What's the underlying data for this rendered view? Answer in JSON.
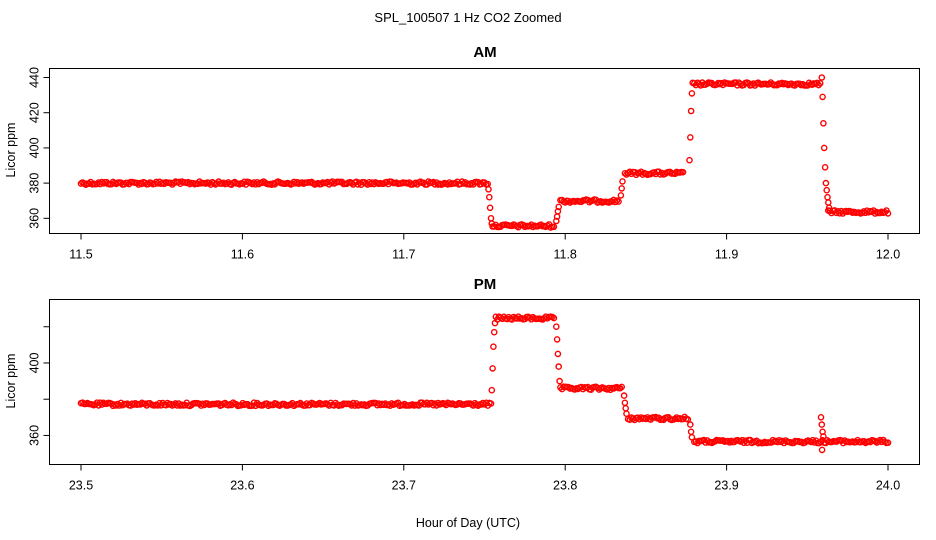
{
  "figure": {
    "title": "SPL_100507  1 Hz CO2 Zoomed",
    "xlabel": "Hour of Day (UTC)"
  },
  "chart_data": [
    {
      "type": "scatter",
      "title": "AM",
      "xlabel": "",
      "ylabel": "Licor ppm",
      "xlim": [
        11.5,
        12.0
      ],
      "ylim": [
        354.5,
        442
      ],
      "x_ticks": [
        11.5,
        11.6,
        11.7,
        11.8,
        11.9,
        12.0
      ],
      "x_tick_labels": [
        "11.5",
        "11.6",
        "11.7",
        "11.8",
        "11.9",
        "12.0"
      ],
      "y_ticks": [
        360,
        380,
        400,
        420,
        440
      ],
      "y_tick_labels": [
        "360",
        "380",
        "400",
        "420",
        "440"
      ],
      "grid": false,
      "marker": "open-circle",
      "color": "#ff0000",
      "segments": [
        {
          "x_start": 11.5,
          "x_end": 11.752,
          "y": 380.0
        },
        {
          "x_start": 11.755,
          "x_end": 11.793,
          "y": 355.7
        },
        {
          "x_start": 11.797,
          "x_end": 11.833,
          "y": 369.8
        },
        {
          "x_start": 11.837,
          "x_end": 11.873,
          "y": 385.6
        },
        {
          "x_start": 11.879,
          "x_end": 11.958,
          "y": 436.3
        },
        {
          "x_start": 11.963,
          "x_end": 12.0,
          "y": 363.6
        }
      ],
      "transitions": [
        {
          "x": 11.7525,
          "y": 376.5
        },
        {
          "x": 11.753,
          "y": 372.0
        },
        {
          "x": 11.7535,
          "y": 366.0
        },
        {
          "x": 11.754,
          "y": 360.0
        },
        {
          "x": 11.7545,
          "y": 357.0
        },
        {
          "x": 11.7945,
          "y": 358.5
        },
        {
          "x": 11.795,
          "y": 361.0
        },
        {
          "x": 11.7955,
          "y": 364.0
        },
        {
          "x": 11.796,
          "y": 366.5
        },
        {
          "x": 11.8345,
          "y": 373.0
        },
        {
          "x": 11.835,
          "y": 377.0
        },
        {
          "x": 11.8355,
          "y": 381.0
        },
        {
          "x": 11.877,
          "y": 393.0
        },
        {
          "x": 11.8775,
          "y": 406.0
        },
        {
          "x": 11.878,
          "y": 421.0
        },
        {
          "x": 11.8785,
          "y": 431.0
        },
        {
          "x": 11.959,
          "y": 440.0
        },
        {
          "x": 11.9595,
          "y": 429.0
        },
        {
          "x": 11.96,
          "y": 414.0
        },
        {
          "x": 11.9605,
          "y": 400.0
        },
        {
          "x": 11.961,
          "y": 389.0
        },
        {
          "x": 11.9615,
          "y": 380.0
        },
        {
          "x": 11.962,
          "y": 376.0
        },
        {
          "x": 11.9625,
          "y": 372.0
        },
        {
          "x": 11.963,
          "y": 369.0
        },
        {
          "x": 11.9635,
          "y": 366.0
        }
      ]
    },
    {
      "type": "scatter",
      "title": "PM",
      "xlabel": "",
      "ylabel": "Licor ppm",
      "xlim": [
        23.5,
        24.0
      ],
      "ylim": [
        347,
        432
      ],
      "x_ticks": [
        23.5,
        23.6,
        23.7,
        23.8,
        23.9,
        24.0
      ],
      "x_tick_labels": [
        "23.5",
        "23.6",
        "23.7",
        "23.8",
        "23.9",
        "24.0"
      ],
      "y_ticks": [
        360,
        380,
        400,
        420
      ],
      "y_tick_labels": [
        "360",
        "",
        "400",
        ""
      ],
      "grid": false,
      "marker": "open-circle",
      "color": "#ff0000",
      "segments": [
        {
          "x_start": 23.5,
          "x_end": 23.754,
          "y": 377.2
        },
        {
          "x_start": 23.757,
          "x_end": 23.793,
          "y": 424.7
        },
        {
          "x_start": 23.797,
          "x_end": 23.835,
          "y": 386.0
        },
        {
          "x_start": 23.839,
          "x_end": 23.876,
          "y": 369.4
        },
        {
          "x_start": 23.88,
          "x_end": 24.0,
          "y": 356.6
        }
      ],
      "transitions": [
        {
          "x": 23.7545,
          "y": 385.0
        },
        {
          "x": 23.755,
          "y": 397.0
        },
        {
          "x": 23.7555,
          "y": 409.0
        },
        {
          "x": 23.756,
          "y": 417.0
        },
        {
          "x": 23.7565,
          "y": 422.0
        },
        {
          "x": 23.7945,
          "y": 420.0
        },
        {
          "x": 23.795,
          "y": 413.0
        },
        {
          "x": 23.7955,
          "y": 405.0
        },
        {
          "x": 23.796,
          "y": 398.0
        },
        {
          "x": 23.7965,
          "y": 390.0
        },
        {
          "x": 23.8365,
          "y": 382.0
        },
        {
          "x": 23.837,
          "y": 378.0
        },
        {
          "x": 23.8375,
          "y": 375.0
        },
        {
          "x": 23.838,
          "y": 372.0
        },
        {
          "x": 23.8775,
          "y": 366.0
        },
        {
          "x": 23.878,
          "y": 362.0
        },
        {
          "x": 23.8785,
          "y": 359.0
        },
        {
          "x": 23.9585,
          "y": 370.0
        },
        {
          "x": 23.959,
          "y": 366.0
        },
        {
          "x": 23.9595,
          "y": 362.0
        },
        {
          "x": 23.96,
          "y": 359.5
        },
        {
          "x": 23.9592,
          "y": 352.0
        }
      ]
    }
  ]
}
